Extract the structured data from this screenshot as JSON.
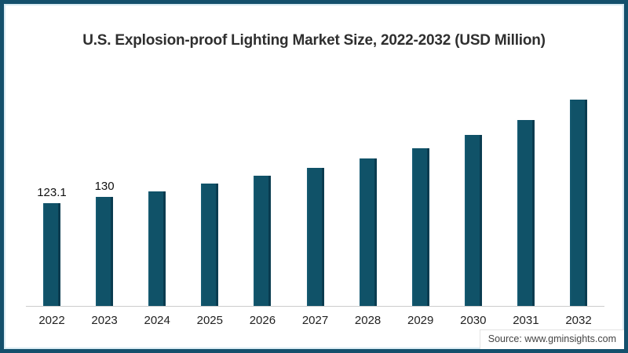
{
  "title": "U.S. Explosion-proof Lighting Market Size, 2022-2032 (USD Million)",
  "source": "Source: www.gminsights.com",
  "colors": {
    "bar": "#105268",
    "bar_edge_light": "#1a6078",
    "bar_edge_dark": "#0a3c50",
    "frame_border": "#14506c",
    "frame_inner_stripe": "#d8eaf2",
    "axis_line": "#cccccc",
    "title_text": "#2f2f2f"
  },
  "chart_data": {
    "type": "bar",
    "title": "U.S. Explosion-proof Lighting Market Size, 2022-2032 (USD Million)",
    "categories": [
      "2022",
      "2023",
      "2024",
      "2025",
      "2026",
      "2027",
      "2028",
      "2029",
      "2030",
      "2031",
      "2032"
    ],
    "values": [
      123.1,
      130,
      137,
      146,
      155,
      165,
      176,
      188,
      204,
      222,
      246
    ],
    "data_labels": [
      "123.1",
      "130",
      "",
      "",
      "",
      "",
      "",
      "",
      "",
      "",
      ""
    ],
    "xlabel": "",
    "ylabel": "",
    "ylim": [
      0,
      280
    ],
    "grid": false,
    "legend": false
  }
}
